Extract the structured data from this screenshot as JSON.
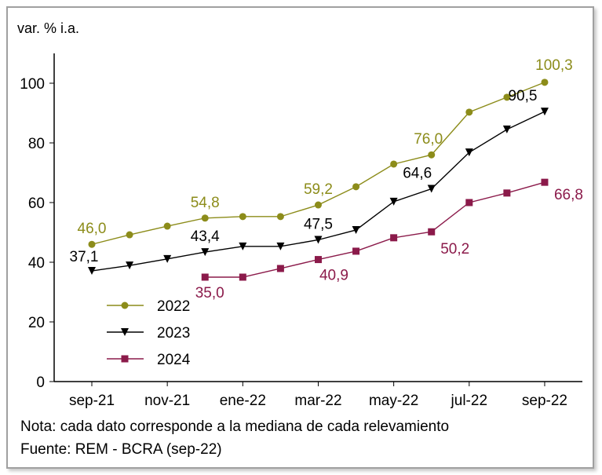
{
  "chart_data": {
    "type": "line",
    "ylabel": "var. % i.a.",
    "ylim": [
      0,
      110
    ],
    "yticks": [
      0,
      20,
      40,
      60,
      80,
      100
    ],
    "categories": [
      "sep-21",
      "oct-21",
      "nov-21",
      "dec-21",
      "ene-22",
      "feb-22",
      "mar-22",
      "apr-22",
      "may-22",
      "jun-22",
      "jul-22",
      "aug-22",
      "sep-22"
    ],
    "xtick_labels": [
      "sep-21",
      "nov-21",
      "ene-22",
      "mar-22",
      "may-22",
      "jul-22",
      "sep-22"
    ],
    "legend_position": "bottom-left",
    "grid": false,
    "series": [
      {
        "name": "2022",
        "color": "#8c8c1a",
        "marker": "circle",
        "values": [
          46.0,
          49.2,
          52.1,
          54.8,
          55.3,
          55.3,
          59.2,
          65.3,
          72.9,
          76.0,
          90.3,
          95.3,
          100.3
        ],
        "labels": [
          {
            "i": 0,
            "text": "46,0"
          },
          {
            "i": 3,
            "text": "54,8"
          },
          {
            "i": 6,
            "text": "59,2"
          },
          {
            "i": 9,
            "text": "76,0"
          },
          {
            "i": 12,
            "text": "100,3"
          }
        ]
      },
      {
        "name": "2023",
        "color": "#000000",
        "marker": "triangle-down",
        "values": [
          37.1,
          38.9,
          41.1,
          43.4,
          45.3,
          45.3,
          47.5,
          50.8,
          60.3,
          64.6,
          76.8,
          84.5,
          90.5
        ],
        "labels": [
          {
            "i": 0,
            "text": "37,1"
          },
          {
            "i": 3,
            "text": "43,4"
          },
          {
            "i": 6,
            "text": "47,5"
          },
          {
            "i": 9,
            "text": "64,6"
          },
          {
            "i": 12,
            "text": "90,5"
          }
        ]
      },
      {
        "name": "2024",
        "color": "#8b1a4a",
        "marker": "square",
        "values": [
          null,
          null,
          null,
          35.0,
          35.0,
          37.9,
          40.9,
          43.7,
          48.2,
          50.2,
          60.0,
          63.2,
          66.8
        ],
        "labels": [
          {
            "i": 3,
            "text": "35,0"
          },
          {
            "i": 6,
            "text": "40,9"
          },
          {
            "i": 9,
            "text": "50,2"
          },
          {
            "i": 12,
            "text": "66,8"
          }
        ]
      }
    ]
  },
  "notes": {
    "nota": "Nota: cada dato corresponde a la mediana de cada relevamiento",
    "fuente": "Fuente: REM - BCRA (sep-22)"
  }
}
